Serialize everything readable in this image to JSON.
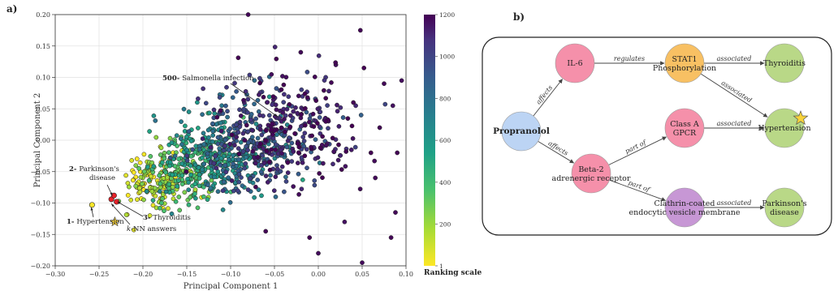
{
  "panels": {
    "a": "a)",
    "b": "b)"
  },
  "chart_data": {
    "type": "scatter",
    "xlabel": "Principal Component 1",
    "ylabel": "Principal Component 2",
    "xlim": [
      -0.3,
      0.1
    ],
    "ylim": [
      -0.2,
      0.2
    ],
    "x_ticks": [
      "−0.30",
      "−0.25",
      "−0.20",
      "−0.15",
      "−0.10",
      "−0.05",
      "0.00",
      "0.05",
      "0.10"
    ],
    "y_ticks": [
      "−0.20",
      "−0.15",
      "−0.10",
      "−0.05",
      "0.00",
      "0.05",
      "0.10",
      "0.15",
      "0.20"
    ],
    "grid": true,
    "colorbar": {
      "label": "Ranking scale",
      "ticks": [
        "1",
        "200",
        "400",
        "600",
        "800",
        "1000",
        "1200"
      ],
      "range": [
        1,
        1200
      ],
      "colormap": "viridis_r"
    },
    "annotations": [
      {
        "num": "500-",
        "text": "Salmonella infection",
        "x": -0.047,
        "y": 0.038
      },
      {
        "num": "2-",
        "text": "Parkinson's",
        "text2": "disease",
        "x": -0.233,
        "y": -0.087
      },
      {
        "num": "1-",
        "text": "Hypertension",
        "x": -0.258,
        "y": -0.103
      },
      {
        "num": "3-",
        "text": "Thyroiditis",
        "x": -0.232,
        "y": -0.094
      },
      {
        "num": "",
        "text_italic": "k",
        "text": "-NN answers",
        "x": -0.236,
        "y": -0.096
      }
    ],
    "highlight_points": [
      {
        "x": -0.258,
        "y": -0.103,
        "color": "#f7e62a"
      },
      {
        "x": -0.236,
        "y": -0.094,
        "color": "#e8232a"
      },
      {
        "x": -0.23,
        "y": -0.098,
        "color": "#e8232a"
      },
      {
        "x": -0.233,
        "y": -0.088,
        "color": "#e8232a"
      }
    ],
    "star": {
      "x": -0.232,
      "y": -0.13,
      "color": "#f8d23a"
    },
    "cloud": {
      "count": 1100,
      "center": [
        -0.115,
        -0.035
      ],
      "note": "dense point cloud; rank increases from lower-left to upper-right"
    }
  },
  "graph": {
    "nodes": [
      {
        "id": "propranolol",
        "label": "Propranolol",
        "bold": true,
        "color": "#bcd4f4"
      },
      {
        "id": "il6",
        "label": "IL-6",
        "color": "#f590aa"
      },
      {
        "id": "beta2",
        "label": "Beta-2",
        "label2": "adrenergic receptor",
        "color": "#f590aa"
      },
      {
        "id": "stat1",
        "label": "STAT1",
        "label2": "Phosphorylation",
        "color": "#f8c063"
      },
      {
        "id": "gpcr",
        "label": "Class A",
        "label2": "GPCR",
        "color": "#f590aa"
      },
      {
        "id": "clathrin",
        "label": "Clathrin-coated",
        "label2": "endocytic vesicle membrane",
        "color": "#c797d5"
      },
      {
        "id": "thyroiditis",
        "label": "Thyroiditis",
        "color": "#b9d887"
      },
      {
        "id": "hypertension",
        "label": "Hypertension",
        "color": "#b9d887"
      },
      {
        "id": "parkinsons",
        "label": "Parkinson's",
        "label2": "disease",
        "color": "#b9d887"
      }
    ],
    "edges": [
      {
        "from": "propranolol",
        "to": "il6",
        "label": "affects"
      },
      {
        "from": "propranolol",
        "to": "beta2",
        "label": "affects"
      },
      {
        "from": "il6",
        "to": "stat1",
        "label": "regulates"
      },
      {
        "from": "stat1",
        "to": "thyroiditis",
        "label": "associated"
      },
      {
        "from": "stat1",
        "to": "hypertension",
        "label": "associated"
      },
      {
        "from": "beta2",
        "to": "gpcr",
        "label": "part of"
      },
      {
        "from": "beta2",
        "to": "clathrin",
        "label": "part of"
      },
      {
        "from": "gpcr",
        "to": "hypertension",
        "label": "associated"
      },
      {
        "from": "clathrin",
        "to": "parkinsons",
        "label": "associated"
      }
    ],
    "star_on": "hypertension"
  }
}
